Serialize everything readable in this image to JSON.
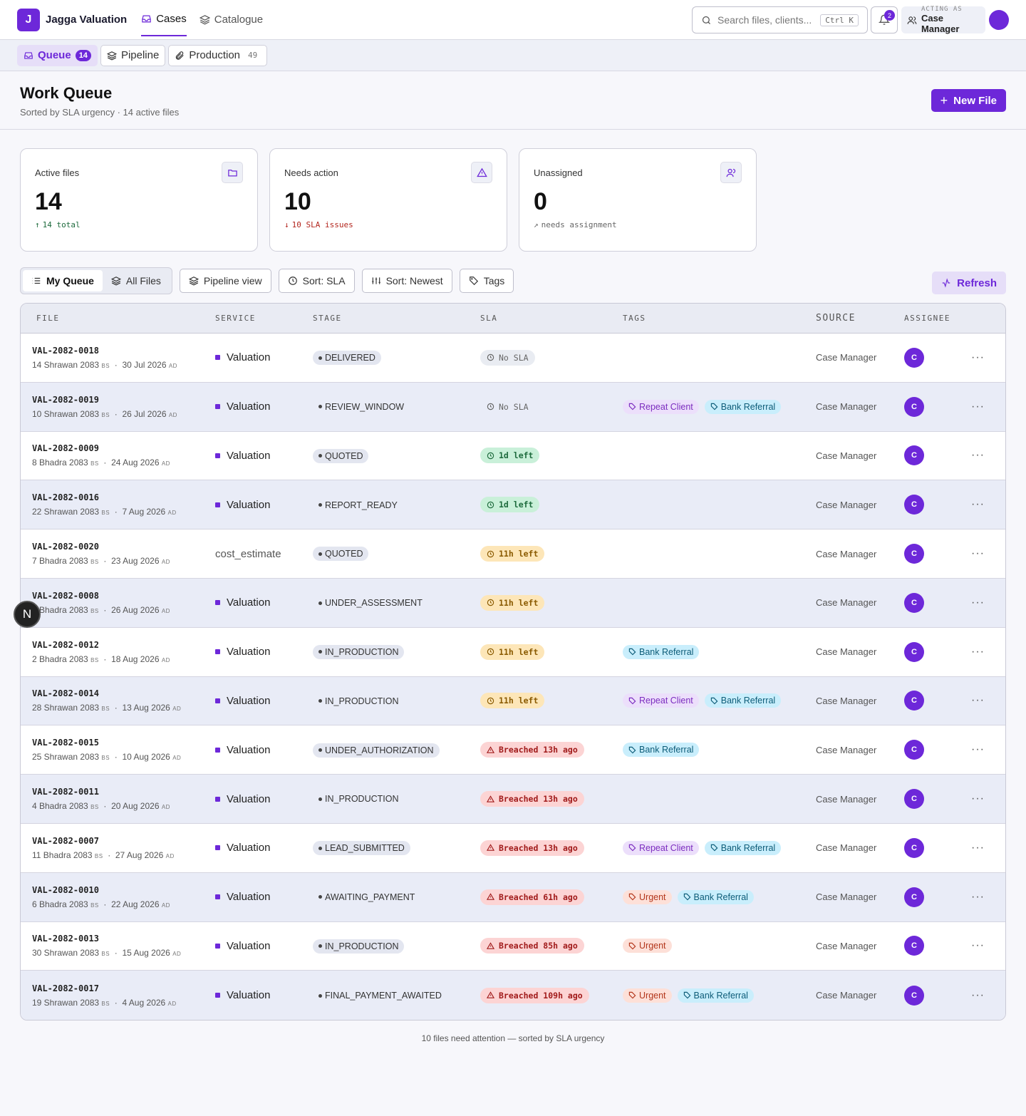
{
  "brand": {
    "logo_letter": "J",
    "name": "Jagga Valuation"
  },
  "nav": {
    "cases": "Cases",
    "catalogue": "Catalogue"
  },
  "search": {
    "placeholder": "Search files, clients...",
    "shortcut": "Ctrl K"
  },
  "notifications": {
    "count": "2"
  },
  "acting": {
    "label": "ACTING AS",
    "role": "Case Manager"
  },
  "subnav": {
    "queue": {
      "label": "Queue",
      "count": "14"
    },
    "pipeline": {
      "label": "Pipeline"
    },
    "production": {
      "label": "Production",
      "count": "49"
    }
  },
  "page": {
    "title": "Work Queue",
    "subtitle": "Sorted by SLA urgency · 14 active files",
    "new_file": "New File"
  },
  "cards": [
    {
      "title": "Active files",
      "value": "14",
      "trend": "14 total",
      "trend_color": "#1e6b3d",
      "icon": "folder-icon"
    },
    {
      "title": "Needs action",
      "value": "10",
      "trend": "10 SLA issues",
      "trend_color": "#b3261e",
      "icon": "alert-triangle-icon"
    },
    {
      "title": "Unassigned",
      "value": "0",
      "trend": "needs assignment",
      "trend_color": "#666666",
      "icon": "users-icon"
    }
  ],
  "toolbar": {
    "my_queue": "My Queue",
    "all_files": "All Files",
    "pipeline_view": "Pipeline view",
    "sort_sla": "Sort: SLA",
    "sort_newest": "Sort: Newest",
    "tags": "Tags",
    "refresh": "Refresh"
  },
  "table": {
    "headers": {
      "file": "FILE",
      "service": "SERVICE",
      "stage": "STAGE",
      "sla": "SLA",
      "tags": "TAGS",
      "source": "SOURCE",
      "assignee": "ASSIGNEE"
    },
    "rows": [
      {
        "id": "VAL-2082-0018",
        "bs": "14 Shrawan 2083",
        "ad": "30 Jul 2026",
        "service": "Valuation",
        "stage": "DELIVERED",
        "stage_pill": true,
        "sla": "No SLA",
        "sla_kind": "none",
        "tags": [],
        "source": "Case Manager",
        "assignee": "C"
      },
      {
        "id": "VAL-2082-0019",
        "bs": "10 Shrawan 2083",
        "ad": "26 Jul 2026",
        "service": "Valuation",
        "stage": "REVIEW_WINDOW",
        "stage_pill": false,
        "sla": "No SLA",
        "sla_kind": "none-bare",
        "tags": [
          "Repeat Client",
          "Bank Referral"
        ],
        "source": "Case Manager",
        "assignee": "C"
      },
      {
        "id": "VAL-2082-0009",
        "bs": "8 Bhadra 2083",
        "ad": "24 Aug 2026",
        "service": "Valuation",
        "stage": "QUOTED",
        "stage_pill": true,
        "sla": "1d left",
        "sla_kind": "green",
        "tags": [],
        "source": "Case Manager",
        "assignee": "C"
      },
      {
        "id": "VAL-2082-0016",
        "bs": "22 Shrawan 2083",
        "ad": "7 Aug 2026",
        "service": "Valuation",
        "stage": "REPORT_READY",
        "stage_pill": false,
        "sla": "1d left",
        "sla_kind": "green",
        "tags": [],
        "source": "Case Manager",
        "assignee": "C"
      },
      {
        "id": "VAL-2082-0020",
        "bs": "7 Bhadra 2083",
        "ad": "23 Aug 2026",
        "service": "cost_estimate",
        "service_plain": true,
        "stage": "QUOTED",
        "stage_pill": true,
        "sla": "11h left",
        "sla_kind": "amber",
        "tags": [],
        "source": "Case Manager",
        "assignee": "C"
      },
      {
        "id": "VAL-2082-0008",
        "bs": "9 Bhadra 2083",
        "ad": "26 Aug 2026",
        "service": "Valuation",
        "stage": "UNDER_ASSESSMENT",
        "stage_pill": false,
        "sla": "11h left",
        "sla_kind": "amber",
        "tags": [],
        "source": "Case Manager",
        "assignee": "C"
      },
      {
        "id": "VAL-2082-0012",
        "bs": "2 Bhadra 2083",
        "ad": "18 Aug 2026",
        "service": "Valuation",
        "stage": "IN_PRODUCTION",
        "stage_pill": true,
        "sla": "11h left",
        "sla_kind": "amber",
        "tags": [
          "Bank Referral"
        ],
        "source": "Case Manager",
        "assignee": "C"
      },
      {
        "id": "VAL-2082-0014",
        "bs": "28 Shrawan 2083",
        "ad": "13 Aug 2026",
        "service": "Valuation",
        "stage": "IN_PRODUCTION",
        "stage_pill": false,
        "sla": "11h left",
        "sla_kind": "amber",
        "tags": [
          "Repeat Client",
          "Bank Referral"
        ],
        "source": "Case Manager",
        "assignee": "C"
      },
      {
        "id": "VAL-2082-0015",
        "bs": "25 Shrawan 2083",
        "ad": "10 Aug 2026",
        "service": "Valuation",
        "stage": "UNDER_AUTHORIZATION",
        "stage_pill": true,
        "sla": "Breached 13h ago",
        "sla_kind": "red",
        "tags": [
          "Bank Referral"
        ],
        "source": "Case Manager",
        "assignee": "C"
      },
      {
        "id": "VAL-2082-0011",
        "bs": "4 Bhadra 2083",
        "ad": "20 Aug 2026",
        "service": "Valuation",
        "stage": "IN_PRODUCTION",
        "stage_pill": false,
        "sla": "Breached 13h ago",
        "sla_kind": "red",
        "tags": [],
        "source": "Case Manager",
        "assignee": "C"
      },
      {
        "id": "VAL-2082-0007",
        "bs": "11 Bhadra 2083",
        "ad": "27 Aug 2026",
        "service": "Valuation",
        "stage": "LEAD_SUBMITTED",
        "stage_pill": true,
        "sla": "Breached 13h ago",
        "sla_kind": "red",
        "tags": [
          "Repeat Client",
          "Bank Referral"
        ],
        "source": "Case Manager",
        "assignee": "C"
      },
      {
        "id": "VAL-2082-0010",
        "bs": "6 Bhadra 2083",
        "ad": "22 Aug 2026",
        "service": "Valuation",
        "stage": "AWAITING_PAYMENT",
        "stage_pill": false,
        "sla": "Breached 61h ago",
        "sla_kind": "red",
        "tags": [
          "Urgent",
          "Bank Referral"
        ],
        "source": "Case Manager",
        "assignee": "C"
      },
      {
        "id": "VAL-2082-0013",
        "bs": "30 Shrawan 2083",
        "ad": "15 Aug 2026",
        "service": "Valuation",
        "stage": "IN_PRODUCTION",
        "stage_pill": true,
        "sla": "Breached 85h ago",
        "sla_kind": "red",
        "tags": [
          "Urgent"
        ],
        "source": "Case Manager",
        "assignee": "C"
      },
      {
        "id": "VAL-2082-0017",
        "bs": "19 Shrawan 2083",
        "ad": "4 Aug 2026",
        "service": "Valuation",
        "stage": "FINAL_PAYMENT_AWAITED",
        "stage_pill": false,
        "sla": "Breached 109h ago",
        "sla_kind": "red",
        "tags": [
          "Urgent",
          "Bank Referral"
        ],
        "source": "Case Manager",
        "assignee": "C"
      }
    ],
    "bs_suffix": "BS",
    "ad_suffix": "AD"
  },
  "footer": "10 files need attention — sorted by SLA urgency",
  "floating": {
    "letter": "N"
  },
  "colors": {
    "accent": "#6d28d9"
  }
}
